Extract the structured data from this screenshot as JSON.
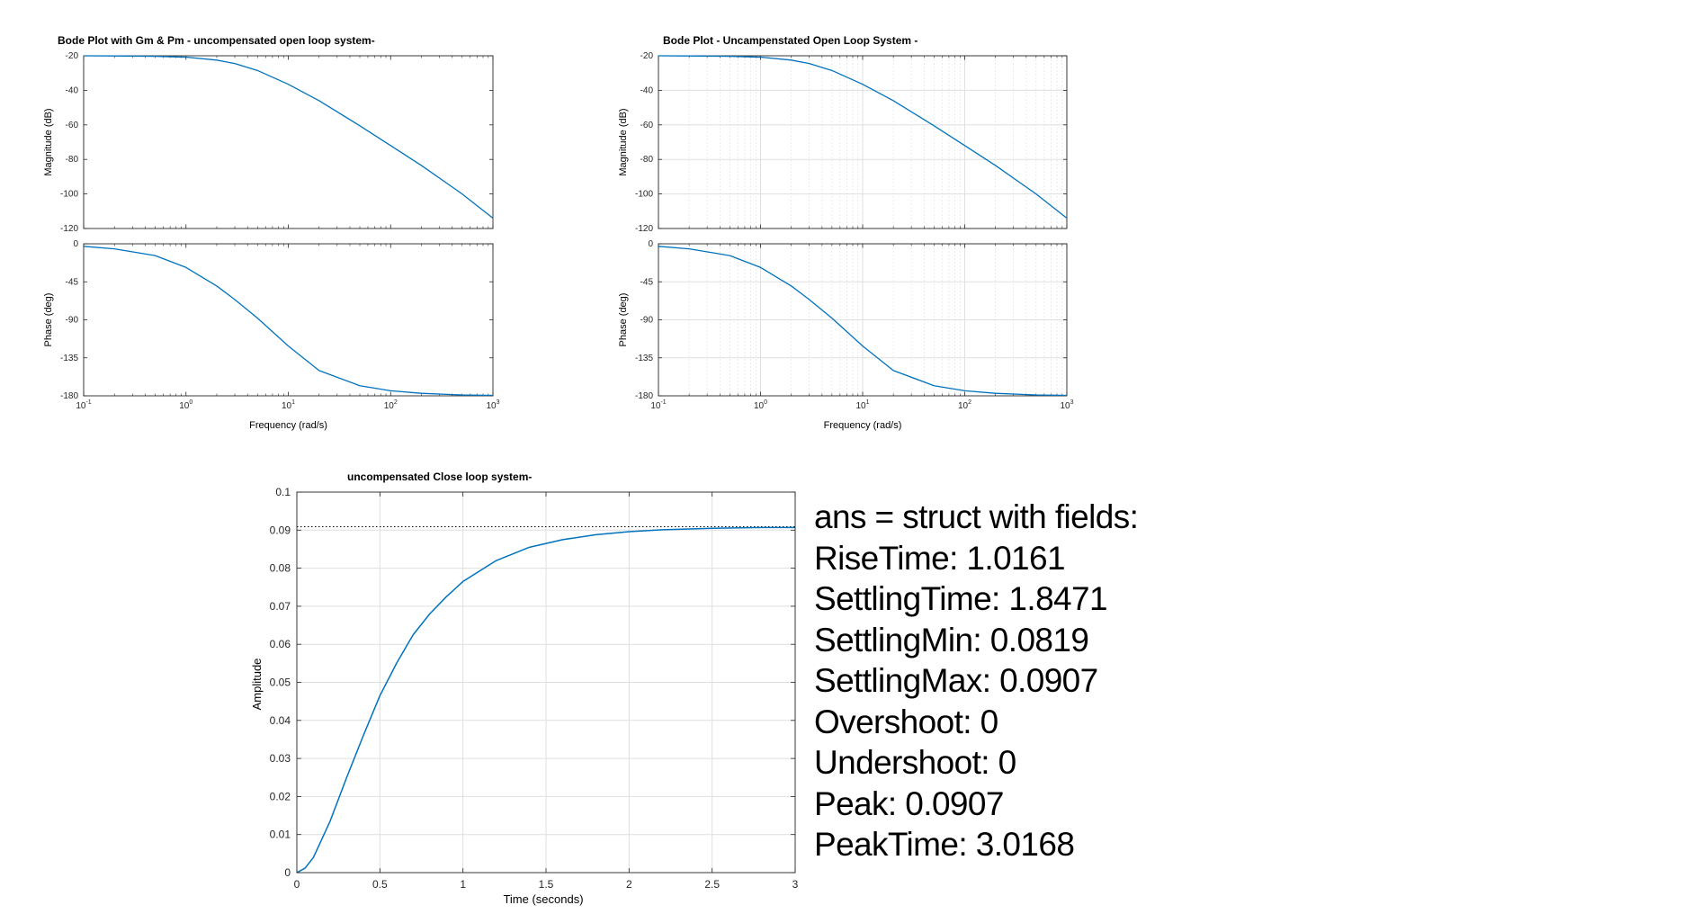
{
  "chart_data": [
    {
      "type": "line",
      "title": "Bode Plot with Gm & Pm - uncompensated open loop system-",
      "xlabel": "Frequency  (rad/s)",
      "xscale": "log",
      "xlim": [
        0.1,
        1000
      ],
      "x_ticks": [
        "10",
        "10",
        "10",
        "10",
        "10"
      ],
      "x_tick_exponents": [
        "-1",
        "0",
        "1",
        "2",
        "3"
      ],
      "grid": "off",
      "panels": [
        {
          "ylabel": "Magnitude (dB)",
          "ylim": [
            -120,
            -20
          ],
          "y_ticks": [
            "-20",
            "-40",
            "-60",
            "-80",
            "-100",
            "-120"
          ],
          "series": [
            {
              "x": [
                0.1,
                0.2,
                0.5,
                1,
                2,
                3,
                5,
                10,
                20,
                50,
                100,
                200,
                500,
                1000
              ],
              "y": [
                -20.0,
                -20.1,
                -20.3,
                -20.8,
                -22.5,
                -24.5,
                -28.5,
                -36.5,
                -46,
                -60.5,
                -72,
                -83.5,
                -100,
                -114
              ]
            }
          ]
        },
        {
          "ylabel": "Phase (deg)",
          "ylim": [
            -180,
            0
          ],
          "y_ticks": [
            "0",
            "-45",
            "-90",
            "-135",
            "-180"
          ],
          "series": [
            {
              "x": [
                0.1,
                0.2,
                0.5,
                1,
                2,
                3,
                5,
                10,
                20,
                50,
                100,
                200,
                500,
                1000
              ],
              "y": [
                -3,
                -6,
                -14,
                -28,
                -50,
                -66,
                -88,
                -121,
                -150,
                -168,
                -174,
                -177,
                -179,
                -179.5
              ]
            }
          ]
        }
      ]
    },
    {
      "type": "line",
      "title": "Bode Plot - Uncampenstated Open Loop System -",
      "xlabel": "Frequency  (rad/s)",
      "xscale": "log",
      "xlim": [
        0.1,
        1000
      ],
      "x_ticks": [
        "10",
        "10",
        "10",
        "10",
        "10"
      ],
      "x_tick_exponents": [
        "-1",
        "0",
        "1",
        "2",
        "3"
      ],
      "grid": "on",
      "panels": [
        {
          "ylabel": "Magnitude (dB)",
          "ylim": [
            -120,
            -20
          ],
          "y_ticks": [
            "-20",
            "-40",
            "-60",
            "-80",
            "-100",
            "-120"
          ],
          "series": [
            {
              "x": [
                0.1,
                0.2,
                0.5,
                1,
                2,
                3,
                5,
                10,
                20,
                50,
                100,
                200,
                500,
                1000
              ],
              "y": [
                -20.0,
                -20.1,
                -20.3,
                -20.8,
                -22.5,
                -24.5,
                -28.5,
                -36.5,
                -46,
                -60.5,
                -72,
                -83.5,
                -100,
                -114
              ]
            }
          ]
        },
        {
          "ylabel": "Phase (deg)",
          "ylim": [
            -180,
            0
          ],
          "y_ticks": [
            "0",
            "-45",
            "-90",
            "-135",
            "-180"
          ],
          "series": [
            {
              "x": [
                0.1,
                0.2,
                0.5,
                1,
                2,
                3,
                5,
                10,
                20,
                50,
                100,
                200,
                500,
                1000
              ],
              "y": [
                -3,
                -6,
                -14,
                -28,
                -50,
                -66,
                -88,
                -121,
                -150,
                -168,
                -174,
                -177,
                -179,
                -179.5
              ]
            }
          ]
        }
      ]
    },
    {
      "type": "line",
      "title": "uncompensated Close loop system-",
      "xlabel": "Time (seconds)",
      "ylabel": "Amplitude",
      "xlim": [
        0,
        3
      ],
      "ylim": [
        0,
        0.1
      ],
      "x_ticks": [
        "0",
        "0.5",
        "1",
        "1.5",
        "2",
        "2.5",
        "3"
      ],
      "y_ticks": [
        "0.1",
        "0.09",
        "0.08",
        "0.07",
        "0.06",
        "0.05",
        "0.04",
        "0.03",
        "0.02",
        "0.01",
        "0"
      ],
      "grid": "on",
      "steady_state": 0.0909,
      "series": [
        {
          "x": [
            0,
            0.05,
            0.1,
            0.2,
            0.3,
            0.4,
            0.5,
            0.6,
            0.7,
            0.8,
            0.9,
            1.0,
            1.2,
            1.4,
            1.6,
            1.8,
            2.0,
            2.2,
            2.5,
            2.8,
            3.0
          ],
          "y": [
            0,
            0.0012,
            0.004,
            0.0135,
            0.025,
            0.036,
            0.0465,
            0.055,
            0.0625,
            0.068,
            0.0725,
            0.0765,
            0.082,
            0.0855,
            0.0875,
            0.0888,
            0.0896,
            0.0901,
            0.0905,
            0.0907,
            0.0907
          ]
        }
      ]
    }
  ],
  "colors": {
    "series": "#0072BD",
    "axis": "#262626",
    "grid": "#dfdfdf"
  },
  "stats": [
    "ans = struct with fields:",
    "RiseTime: 1.0161",
    "SettlingTime: 1.8471",
    "SettlingMin: 0.0819",
    "SettlingMax: 0.0907",
    "Overshoot: 0",
    "Undershoot: 0",
    "Peak: 0.0907",
    "PeakTime: 3.0168"
  ]
}
